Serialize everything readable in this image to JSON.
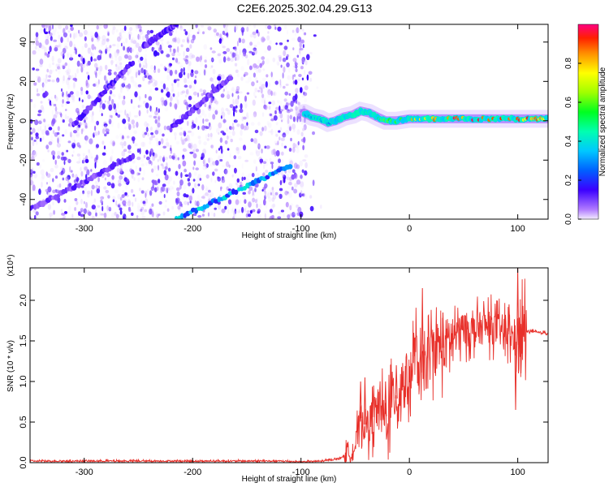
{
  "title": "C2E6.2025.302.04.29.G13",
  "colors": {
    "snr_line": "#e8302a",
    "spectrogram_track": "#1e90ff",
    "scatter_purple": "#6a2be2",
    "frame": "#000000"
  },
  "chart_data": [
    {
      "type": "heatmap",
      "name": "spectrogram",
      "xlabel": "Height of straight line (km)",
      "ylabel": "Frequency (Hz)",
      "xlim": [
        -350,
        128
      ],
      "ylim": [
        -50,
        49
      ],
      "xticks": [
        -300,
        -200,
        -100,
        0,
        100
      ],
      "yticks": [
        -40,
        -20,
        0,
        20,
        40
      ],
      "grid": false,
      "noise_region": [
        -350,
        -95
      ],
      "track_points": [
        {
          "x": -97,
          "y": 4,
          "amp": 0.35
        },
        {
          "x": -90,
          "y": 2,
          "amp": 0.3
        },
        {
          "x": -82,
          "y": 1,
          "amp": 0.3
        },
        {
          "x": -75,
          "y": -1,
          "amp": 0.3
        },
        {
          "x": -68,
          "y": 0,
          "amp": 0.35
        },
        {
          "x": -60,
          "y": 2,
          "amp": 0.4
        },
        {
          "x": -52,
          "y": 3,
          "amp": 0.45
        },
        {
          "x": -45,
          "y": 5,
          "amp": 0.45
        },
        {
          "x": -37,
          "y": 4,
          "amp": 0.5
        },
        {
          "x": -30,
          "y": 2,
          "amp": 0.55
        },
        {
          "x": -22,
          "y": 0,
          "amp": 0.6
        },
        {
          "x": -12,
          "y": 0,
          "amp": 0.65
        },
        {
          "x": 0,
          "y": 1,
          "amp": 0.75
        },
        {
          "x": 12,
          "y": 1,
          "amp": 0.8
        },
        {
          "x": 25,
          "y": 1,
          "amp": 0.85
        },
        {
          "x": 40,
          "y": 1,
          "amp": 0.9
        },
        {
          "x": 55,
          "y": 1,
          "amp": 0.9
        },
        {
          "x": 70,
          "y": 1,
          "amp": 0.95
        },
        {
          "x": 85,
          "y": 1,
          "amp": 0.95
        },
        {
          "x": 100,
          "y": 1,
          "amp": 0.9
        },
        {
          "x": 115,
          "y": 1,
          "amp": 0.85
        },
        {
          "x": 128,
          "y": 1,
          "amp": 0.8
        }
      ],
      "diagonal_streaks": [
        {
          "x0": -310,
          "y0": -2,
          "x1": -255,
          "y1": 30,
          "amp": 0.12
        },
        {
          "x0": -220,
          "y0": -4,
          "x1": -165,
          "y1": 22,
          "amp": 0.1
        },
        {
          "x0": -350,
          "y0": -45,
          "x1": -255,
          "y1": -18,
          "amp": 0.1
        },
        {
          "x0": -215,
          "y0": -50,
          "x1": -110,
          "y1": -23,
          "amp": 0.3
        },
        {
          "x0": -245,
          "y0": 38,
          "x1": -215,
          "y1": 49,
          "amp": 0.12
        }
      ],
      "colorbar": {
        "label": "Normalized spectral amplitude",
        "ticks": [
          "0.0",
          "0.2",
          "0.4",
          "0.6",
          "0.8"
        ],
        "tick_values": [
          0.0,
          0.2,
          0.4,
          0.6,
          0.8
        ],
        "range": [
          0,
          1
        ]
      }
    },
    {
      "type": "line",
      "name": "snr",
      "xlabel": "Height of straight line (km)",
      "ylabel": "SNR (10 * v/v)",
      "y_multiplier": "(x10⁴)",
      "xlim": [
        -350,
        128
      ],
      "ylim": [
        0,
        2.4
      ],
      "xticks": [
        -300,
        -200,
        -100,
        0,
        100
      ],
      "yticks": [
        "0.0",
        "0.5",
        "1.0",
        "1.5",
        "2.0"
      ],
      "ytick_values": [
        0,
        0.5,
        1.0,
        1.5,
        2.0
      ],
      "grid": false,
      "series": [
        {
          "name": "SNR",
          "x": [
            -350,
            -300,
            -250,
            -200,
            -150,
            -120,
            -100,
            -80,
            -65,
            -55,
            -50,
            -45,
            -40,
            -35,
            -30,
            -25,
            -20,
            -15,
            -10,
            -5,
            0,
            5,
            10,
            15,
            20,
            25,
            30,
            40,
            50,
            60,
            70,
            80,
            90,
            95,
            100,
            105,
            110,
            120,
            128
          ],
          "values": [
            0.02,
            0.02,
            0.02,
            0.02,
            0.02,
            0.02,
            0.01,
            0.02,
            0.05,
            0.12,
            0.2,
            0.55,
            0.45,
            0.5,
            0.65,
            0.6,
            0.55,
            0.85,
            0.75,
            1.1,
            0.95,
            1.4,
            1.05,
            1.2,
            1.35,
            1.45,
            1.4,
            1.55,
            1.65,
            1.62,
            1.68,
            1.65,
            1.6,
            1.55,
            1.45,
            1.6,
            1.62,
            1.6,
            1.6
          ],
          "noise_spikes": [
            {
              "x": -45,
              "y": 1.0
            },
            {
              "x": -41,
              "y": 1.05
            },
            {
              "x": -33,
              "y": 0.95
            },
            {
              "x": -22,
              "y": 1.0
            },
            {
              "x": -12,
              "y": 1.2
            },
            {
              "x": 4,
              "y": 1.6
            },
            {
              "x": 12,
              "y": 2.15
            },
            {
              "x": 31,
              "y": 1.85
            },
            {
              "x": 48,
              "y": 1.8
            },
            {
              "x": 92,
              "y": 1.95
            },
            {
              "x": 98,
              "y": 0.65
            },
            {
              "x": 100,
              "y": 2.4
            },
            {
              "x": 103,
              "y": 1.1
            }
          ]
        }
      ]
    }
  ]
}
